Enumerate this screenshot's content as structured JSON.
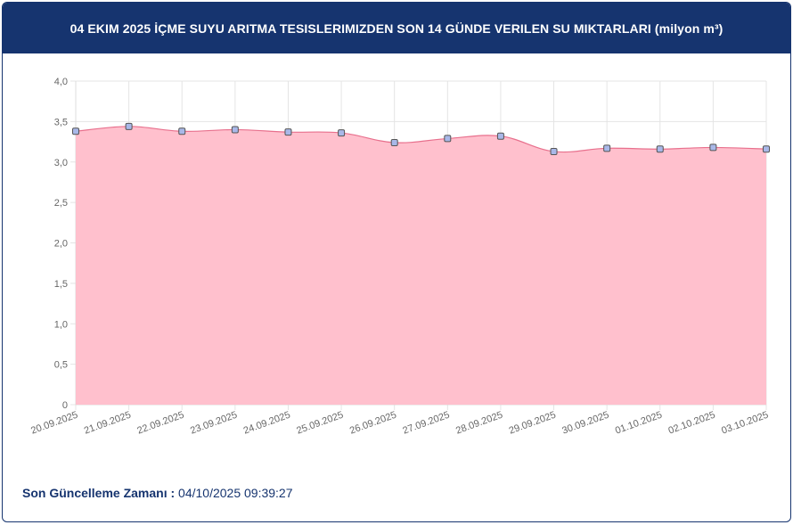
{
  "header": {
    "title": "04 EKIM 2025 İÇME SUYU ARITMA TESISLERIMIZDEN SON 14 GÜNDE VERILEN SU MIKTARLARI (milyon m³)"
  },
  "footer": {
    "label": "Son Güncelleme Zamanı :",
    "value": "04/10/2025 09:39:27"
  },
  "chart_data": {
    "type": "area",
    "title": "",
    "xlabel": "",
    "ylabel": "",
    "categories": [
      "20.09.2025",
      "21.09.2025",
      "22.09.2025",
      "23.09.2025",
      "24.09.2025",
      "25.09.2025",
      "26.09.2025",
      "27.09.2025",
      "28.09.2025",
      "29.09.2025",
      "30.09.2025",
      "01.10.2025",
      "02.10.2025",
      "03.10.2025"
    ],
    "values": [
      3.38,
      3.44,
      3.38,
      3.4,
      3.37,
      3.36,
      3.24,
      3.29,
      3.32,
      3.13,
      3.17,
      3.16,
      3.18,
      3.16
    ],
    "ylim": [
      0,
      4
    ],
    "yticks": [
      "0",
      "0,5",
      "1,0",
      "1,5",
      "2,0",
      "2,5",
      "3,0",
      "3,5",
      "4,0"
    ],
    "ytick_values": [
      0,
      0.5,
      1.0,
      1.5,
      2.0,
      2.5,
      3.0,
      3.5,
      4.0
    ],
    "grid": true,
    "legend": "none",
    "fill_color": "#ffc0cd",
    "line_color": "#e8708d",
    "marker_fill": "#a9b8e8",
    "marker_stroke": "#555555",
    "grid_color": "#e4e4e4"
  }
}
